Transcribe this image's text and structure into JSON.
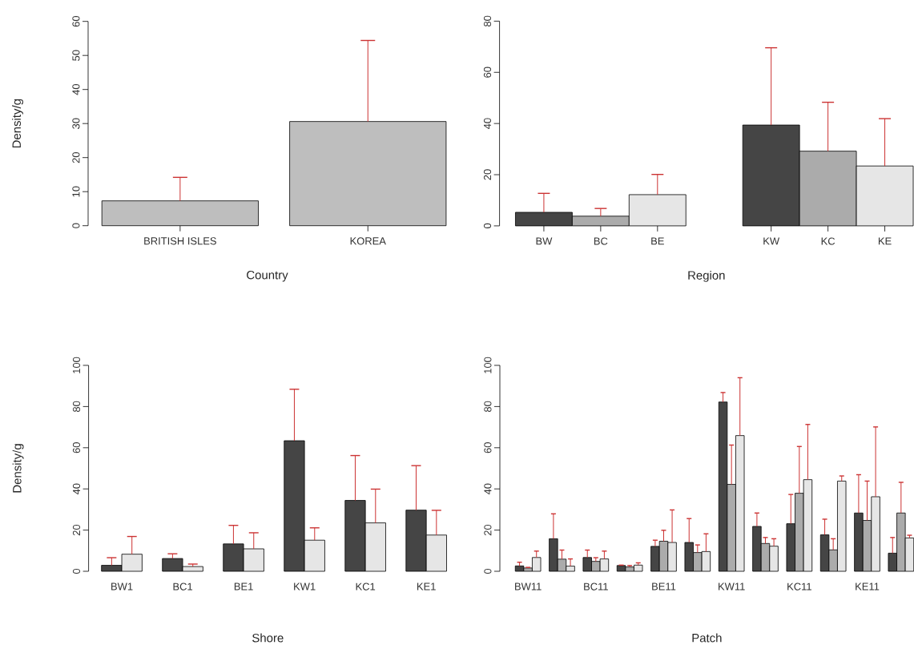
{
  "chart_data": [
    {
      "type": "bar",
      "xlabel": "Country",
      "ylabel": "Density/g",
      "categories": [
        "BRITISH ISLES",
        "KOREA"
      ],
      "values": [
        7.3,
        30.6
      ],
      "color": "#bebebe",
      "errors": [
        [
          7.3,
          14.2
        ],
        [
          30.6,
          54.4
        ]
      ],
      "ylim": [
        0,
        60
      ],
      "yticks": [
        0,
        10,
        20,
        30,
        40,
        50,
        60
      ]
    },
    {
      "type": "bar",
      "xlabel": "Region",
      "categories": [
        "BW",
        "BC",
        "BE",
        null,
        "KW",
        "KC",
        "KE"
      ],
      "values": [
        5.3,
        3.8,
        12.2,
        null,
        39.4,
        29.2,
        23.4
      ],
      "colors": [
        "#454545",
        "#ababab",
        "#e6e6e6",
        null,
        "#454545",
        "#ababab",
        "#e6e6e6"
      ],
      "errors": [
        [
          5.3,
          12.7
        ],
        [
          3.8,
          6.8
        ],
        [
          12.2,
          20.1
        ],
        null,
        [
          39.4,
          69.6
        ],
        [
          29.2,
          48.3
        ],
        [
          23.4,
          41.9
        ]
      ],
      "ylim": [
        0,
        80
      ],
      "yticks": [
        0,
        20,
        40,
        60,
        80
      ]
    },
    {
      "type": "bar",
      "xlabel": "Shore",
      "ylabel": "Density/g",
      "categories": [
        "BW1",
        "BC1",
        "BE1",
        "KW1",
        "KC1",
        "KE1"
      ],
      "series": [
        {
          "color": "#454545",
          "values": [
            2.9,
            6.2,
            13.3,
            63.4,
            34.4,
            29.7
          ],
          "errors": [
            [
              2.9,
              6.6
            ],
            [
              6.2,
              8.5
            ],
            [
              13.3,
              22.3
            ],
            [
              63.4,
              88.4
            ],
            [
              34.4,
              56.2
            ],
            [
              29.7,
              51.3
            ]
          ]
        },
        {
          "color": "#e6e6e6",
          "values": [
            8.3,
            2.3,
            10.9,
            15.1,
            23.5,
            17.6
          ],
          "errors": [
            [
              8.3,
              16.9
            ],
            [
              2.3,
              3.5
            ],
            [
              10.9,
              18.7
            ],
            [
              15.1,
              21.1
            ],
            [
              23.5,
              39.9
            ],
            [
              17.6,
              29.6
            ]
          ]
        }
      ],
      "ylim": [
        0,
        100
      ],
      "yticks": [
        0,
        20,
        40,
        60,
        80,
        100
      ]
    },
    {
      "type": "bar",
      "xlabel": "Patch",
      "categories": [
        "BW11",
        null,
        "BC11",
        null,
        "BE11",
        null,
        "KW11",
        null,
        "KC11",
        null,
        "KE11",
        null
      ],
      "series": [
        {
          "color": "#454545",
          "values": [
            2.6,
            15.8,
            6.7,
            2.8,
            12.1,
            14.0,
            82.2,
            21.8,
            23.1,
            17.7,
            28.3,
            8.8
          ],
          "errors": [
            [
              2.6,
              4.4
            ],
            [
              15.8,
              27.9
            ],
            [
              6.7,
              10.3
            ],
            [
              2.8,
              3.0
            ],
            [
              12.1,
              15.1
            ],
            [
              14.0,
              25.6
            ],
            [
              82.2,
              86.8
            ],
            [
              21.8,
              28.3
            ],
            [
              23.1,
              37.3
            ],
            [
              17.7,
              25.3
            ],
            [
              28.3,
              46.9
            ],
            [
              8.8,
              16.4
            ]
          ]
        },
        {
          "color": "#ababab",
          "values": [
            1.6,
            5.9,
            4.8,
            2.1,
            14.6,
            9.1,
            42.2,
            13.5,
            37.9,
            10.4,
            24.7,
            28.3
          ],
          "errors": [
            [
              1.6,
              1.9
            ],
            [
              5.9,
              10.3
            ],
            [
              4.8,
              6.6
            ],
            [
              2.1,
              2.8
            ],
            [
              14.6,
              19.9
            ],
            [
              9.1,
              12.8
            ],
            [
              42.2,
              61.3
            ],
            [
              13.5,
              16.4
            ],
            [
              37.9,
              60.6
            ],
            [
              10.4,
              15.8
            ],
            [
              24.7,
              43.8
            ],
            [
              28.3,
              43.2
            ]
          ]
        },
        {
          "color": "#e6e6e6",
          "values": [
            6.7,
            2.5,
            6.0,
            3.0,
            14.0,
            9.6,
            65.9,
            12.2,
            44.5,
            43.8,
            36.2,
            16.2
          ],
          "errors": [
            [
              6.7,
              9.8
            ],
            [
              2.5,
              6.0
            ],
            [
              6.0,
              9.8
            ],
            [
              3.0,
              4.1
            ],
            [
              14.0,
              29.8
            ],
            [
              9.6,
              18.2
            ],
            [
              65.9,
              94.0
            ],
            [
              12.2,
              15.8
            ],
            [
              44.5,
              71.3
            ],
            [
              43.8,
              46.3
            ],
            [
              36.2,
              70.1
            ],
            [
              16.2,
              17.5
            ]
          ]
        }
      ],
      "ylim": [
        0,
        100
      ],
      "yticks": [
        0,
        20,
        40,
        60,
        80,
        100
      ]
    }
  ]
}
